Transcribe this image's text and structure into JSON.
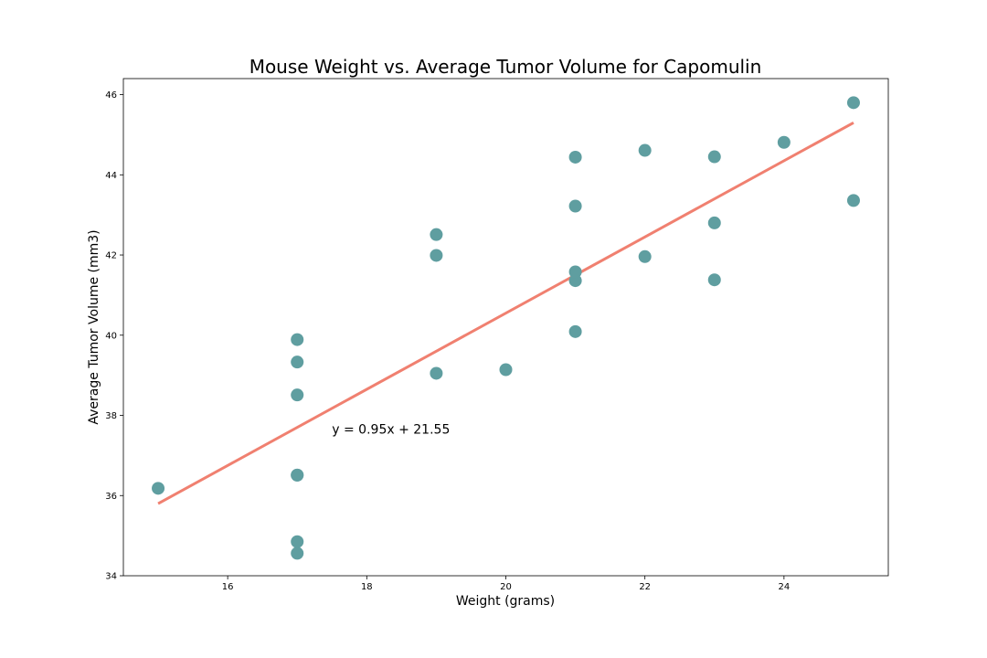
{
  "chart_data": {
    "type": "scatter",
    "title": "Mouse Weight vs. Average Tumor Volume for Capomulin",
    "xlabel": "Weight (grams)",
    "ylabel": "Average Tumor Volume (mm3)",
    "xlim": [
      14.5,
      25.5
    ],
    "ylim": [
      34,
      46.4
    ],
    "xticks": [
      16,
      18,
      20,
      22,
      24
    ],
    "yticks": [
      34,
      36,
      38,
      40,
      42,
      44,
      46
    ],
    "grid": false,
    "legend": "none",
    "colors": {
      "points": "#5f9ea0",
      "line": "#f08070"
    },
    "series": [
      {
        "kind": "scatter",
        "x": [
          15,
          17,
          17,
          17,
          17,
          17,
          17,
          17,
          19,
          19,
          19,
          20,
          21,
          21,
          21,
          21,
          21,
          22,
          22,
          23,
          23,
          23,
          24,
          25,
          25
        ],
        "y": [
          36.18,
          34.56,
          34.85,
          36.51,
          38.51,
          39.33,
          39.89,
          36.51,
          39.05,
          41.99,
          42.51,
          39.14,
          40.09,
          41.36,
          41.58,
          43.22,
          44.44,
          41.96,
          44.61,
          41.38,
          42.8,
          44.45,
          44.81,
          43.36,
          45.8
        ]
      },
      {
        "kind": "regression-line",
        "slope": 0.95,
        "intercept": 21.55,
        "x_range": [
          15,
          25
        ]
      }
    ],
    "annotations": [
      {
        "text": "y = 0.95x + 21.55",
        "x": 17.5,
        "y": 37.5
      }
    ]
  }
}
